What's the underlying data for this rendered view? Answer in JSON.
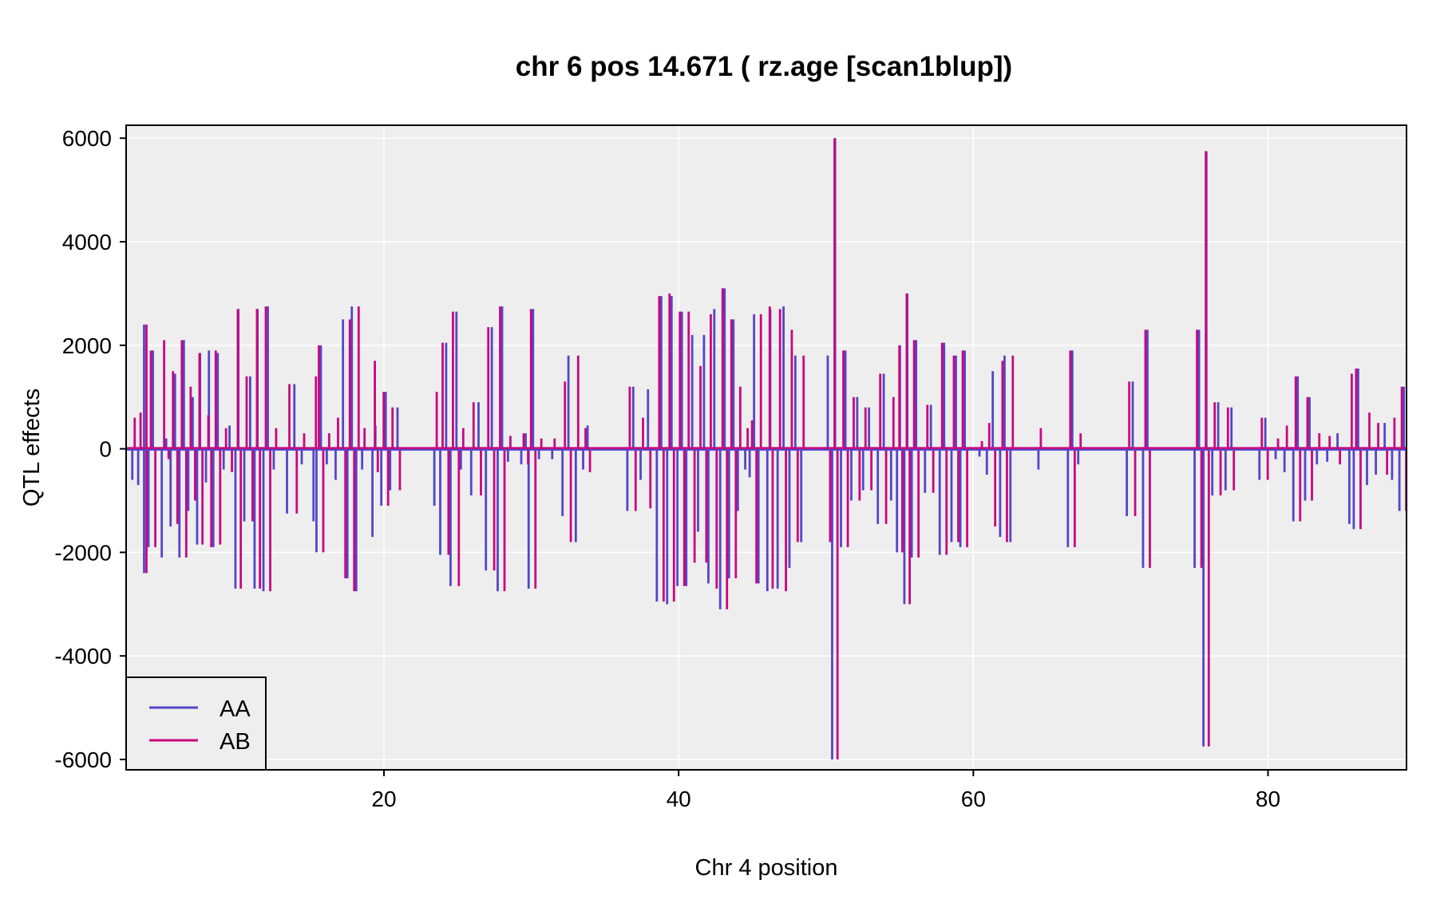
{
  "chart_data": {
    "type": "line",
    "title": "chr 6 pos 14.671 ( rz.age  [scan1blup])",
    "xlabel": "Chr 4 position",
    "ylabel": "QTL effects",
    "xlim": [
      2.5,
      89.4
    ],
    "ylim": [
      -6200,
      6250
    ],
    "xticks": [
      20,
      40,
      60,
      80
    ],
    "yticks": [
      -6000,
      -4000,
      -2000,
      0,
      2000,
      4000,
      6000
    ],
    "grid": true,
    "legend_position": "bottom-left",
    "colors": {
      "AA": "#5346C8",
      "AB": "#C8077E",
      "panel": "#EEEEEE",
      "grid": "#FFFFFF"
    },
    "series": [
      {
        "name": "AA",
        "color": "#5346C8"
      },
      {
        "name": "AB",
        "color": "#C8077E"
      }
    ],
    "spikes": [
      [
        3.0,
        600
      ],
      [
        3.4,
        700
      ],
      [
        3.8,
        -2400
      ],
      [
        3.8,
        2400
      ],
      [
        4.1,
        1900
      ],
      [
        4.4,
        -1900
      ],
      [
        5.0,
        2100
      ],
      [
        5.3,
        -200
      ],
      [
        5.6,
        1500
      ],
      [
        5.9,
        -1450
      ],
      [
        6.2,
        2100
      ],
      [
        6.5,
        -2100
      ],
      [
        6.8,
        1200
      ],
      [
        7.1,
        -1000
      ],
      [
        7.4,
        1850
      ],
      [
        7.6,
        -1850
      ],
      [
        8.0,
        650
      ],
      [
        8.2,
        -1900
      ],
      [
        8.5,
        1900
      ],
      [
        8.8,
        -1850
      ],
      [
        9.2,
        400
      ],
      [
        9.6,
        -450
      ],
      [
        10.0,
        2700
      ],
      [
        10.2,
        -2700
      ],
      [
        10.6,
        1400
      ],
      [
        11.0,
        -1400
      ],
      [
        11.3,
        2700
      ],
      [
        11.5,
        -2700
      ],
      [
        11.9,
        2750
      ],
      [
        12.2,
        -2750
      ],
      [
        12.6,
        400
      ],
      [
        13.5,
        1250
      ],
      [
        14.0,
        -1250
      ],
      [
        14.5,
        300
      ],
      [
        15.3,
        1400
      ],
      [
        15.5,
        2000
      ],
      [
        15.8,
        -2000
      ],
      [
        16.2,
        300
      ],
      [
        16.8,
        600
      ],
      [
        17.3,
        -2500
      ],
      [
        17.6,
        2500
      ],
      [
        17.9,
        -2750
      ],
      [
        18.2,
        2750
      ],
      [
        18.6,
        400
      ],
      [
        19.3,
        1700
      ],
      [
        19.5,
        -450
      ],
      [
        19.9,
        1100
      ],
      [
        20.2,
        -1100
      ],
      [
        20.5,
        800
      ],
      [
        21.0,
        -800
      ],
      [
        23.5,
        1100
      ],
      [
        23.9,
        2050
      ],
      [
        24.3,
        -2050
      ],
      [
        24.6,
        2650
      ],
      [
        25.0,
        -2650
      ],
      [
        25.3,
        400
      ],
      [
        26.0,
        900
      ],
      [
        26.5,
        -900
      ],
      [
        27.0,
        2350
      ],
      [
        27.4,
        -2350
      ],
      [
        27.8,
        2750
      ],
      [
        28.1,
        -2750
      ],
      [
        28.5,
        250
      ],
      [
        29.4,
        300
      ],
      [
        29.7,
        -300
      ],
      [
        29.9,
        2700
      ],
      [
        30.2,
        -2700
      ],
      [
        30.6,
        200
      ],
      [
        31.5,
        200
      ],
      [
        32.2,
        1300
      ],
      [
        32.6,
        -1800
      ],
      [
        33.1,
        1800
      ],
      [
        33.6,
        400
      ],
      [
        33.9,
        -450
      ],
      [
        36.6,
        1200
      ],
      [
        37.0,
        -1200
      ],
      [
        37.5,
        600
      ],
      [
        38.0,
        -1150
      ],
      [
        38.6,
        2950
      ],
      [
        38.9,
        -2950
      ],
      [
        39.3,
        3000
      ],
      [
        39.6,
        -2950
      ],
      [
        40.0,
        2650
      ],
      [
        40.3,
        -2650
      ],
      [
        40.6,
        2650
      ],
      [
        41.0,
        -2200
      ],
      [
        41.4,
        1600
      ],
      [
        41.8,
        -2200
      ],
      [
        42.1,
        2600
      ],
      [
        42.5,
        -2700
      ],
      [
        42.9,
        3100
      ],
      [
        43.2,
        -3100
      ],
      [
        43.5,
        2500
      ],
      [
        43.8,
        -2500
      ],
      [
        44.1,
        1200
      ],
      [
        44.6,
        400
      ],
      [
        44.9,
        550
      ],
      [
        45.2,
        -2600
      ],
      [
        45.5,
        2600
      ],
      [
        46.1,
        2750
      ],
      [
        46.3,
        -2700
      ],
      [
        46.8,
        2700
      ],
      [
        47.2,
        -2750
      ],
      [
        47.6,
        2300
      ],
      [
        48.0,
        -1800
      ],
      [
        48.4,
        1800
      ],
      [
        50.2,
        -1800
      ],
      [
        50.5,
        6000
      ],
      [
        50.7,
        -6000
      ],
      [
        51.1,
        1900
      ],
      [
        51.4,
        -1900
      ],
      [
        51.8,
        1000
      ],
      [
        52.2,
        -1000
      ],
      [
        52.6,
        800
      ],
      [
        53.0,
        -800
      ],
      [
        53.6,
        1450
      ],
      [
        54.0,
        -1450
      ],
      [
        54.5,
        1000
      ],
      [
        54.9,
        2000
      ],
      [
        55.1,
        -2000
      ],
      [
        55.4,
        3000
      ],
      [
        55.6,
        -3000
      ],
      [
        55.9,
        2100
      ],
      [
        56.2,
        -2100
      ],
      [
        56.8,
        850
      ],
      [
        57.2,
        -850
      ],
      [
        57.8,
        2050
      ],
      [
        58.1,
        -2050
      ],
      [
        58.6,
        1800
      ],
      [
        58.9,
        -1800
      ],
      [
        59.2,
        1900
      ],
      [
        59.5,
        -1900
      ],
      [
        60.5,
        150
      ],
      [
        61.0,
        500
      ],
      [
        61.4,
        -1500
      ],
      [
        61.9,
        1700
      ],
      [
        62.2,
        -1800
      ],
      [
        62.6,
        1800
      ],
      [
        64.5,
        400
      ],
      [
        66.5,
        1900
      ],
      [
        66.8,
        -1900
      ],
      [
        67.2,
        300
      ],
      [
        70.5,
        1300
      ],
      [
        70.9,
        -1300
      ],
      [
        71.6,
        2300
      ],
      [
        71.9,
        -2300
      ],
      [
        75.1,
        2300
      ],
      [
        75.4,
        -2300
      ],
      [
        75.7,
        5750
      ],
      [
        75.9,
        -5750
      ],
      [
        76.3,
        900
      ],
      [
        76.7,
        -900
      ],
      [
        77.2,
        800
      ],
      [
        77.6,
        -800
      ],
      [
        79.5,
        600
      ],
      [
        79.9,
        -600
      ],
      [
        80.6,
        200
      ],
      [
        81.2,
        450
      ],
      [
        81.8,
        1400
      ],
      [
        82.1,
        -1400
      ],
      [
        82.6,
        1000
      ],
      [
        82.9,
        -1000
      ],
      [
        83.4,
        300
      ],
      [
        84.1,
        250
      ],
      [
        84.8,
        -300
      ],
      [
        85.6,
        1450
      ],
      [
        85.9,
        1550
      ],
      [
        86.2,
        -1550
      ],
      [
        86.8,
        700
      ],
      [
        87.4,
        500
      ],
      [
        88.0,
        -500
      ],
      [
        88.5,
        600
      ],
      [
        89.0,
        1200
      ],
      [
        89.3,
        -1200
      ]
    ]
  },
  "legend": {
    "items": [
      {
        "label": "AA"
      },
      {
        "label": "AB"
      }
    ]
  }
}
